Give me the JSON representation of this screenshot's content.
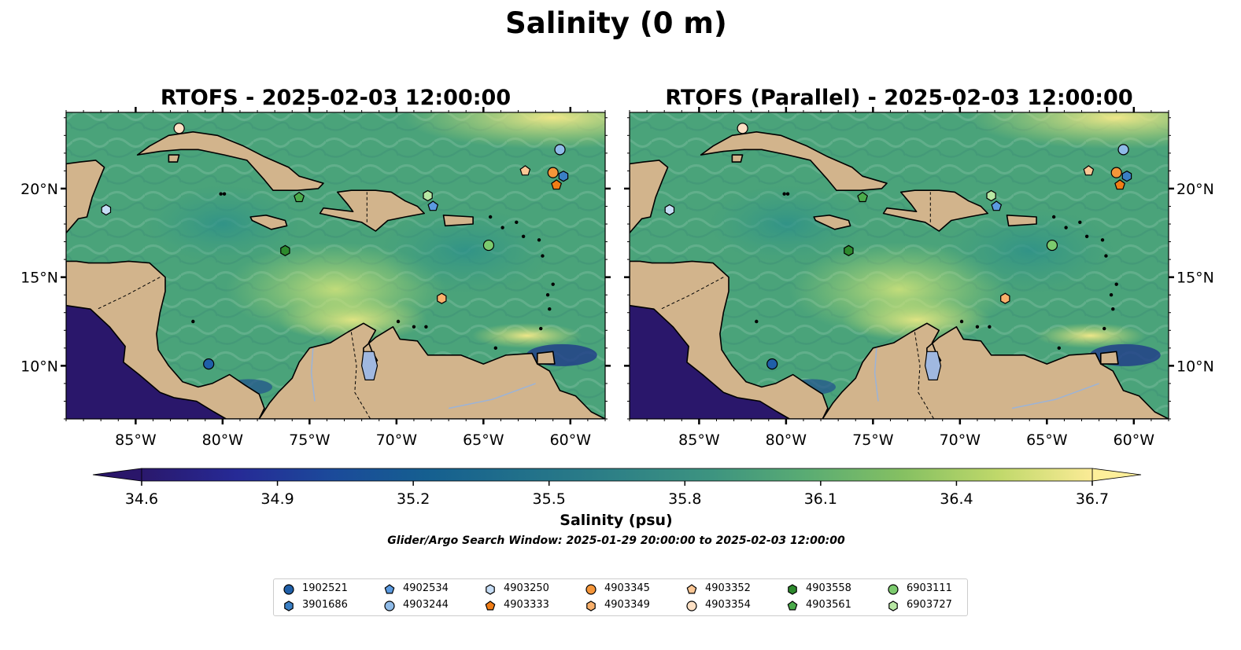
{
  "figure": {
    "suptitle": "Salinity (0 m)",
    "colorbar_label": "Salinity (psu)",
    "search_window": "Glider/Argo Search Window: 2025-01-29 20:00:00 to 2025-02-03 12:00:00"
  },
  "panels": [
    {
      "title": "RTOFS - 2025-02-03 12:00:00"
    },
    {
      "title": "RTOFS (Parallel) - 2025-02-03 12:00:00"
    }
  ],
  "axes": {
    "lon_range": [
      -89,
      -58
    ],
    "lat_range": [
      7,
      24.3
    ],
    "lon_ticks": [
      -85,
      -80,
      -75,
      -70,
      -65,
      -60
    ],
    "lon_tick_labels": [
      "85°W",
      "80°W",
      "75°W",
      "70°W",
      "65°W",
      "60°W"
    ],
    "lat_ticks": [
      10,
      15,
      20
    ],
    "lat_tick_labels": [
      "10°N",
      "15°N",
      "20°N"
    ]
  },
  "colorbar": {
    "min": 34.6,
    "max": 36.7,
    "ticks": [
      34.6,
      34.9,
      35.2,
      35.5,
      35.8,
      36.1,
      36.4,
      36.7
    ],
    "tick_labels": [
      "34.6",
      "34.9",
      "35.2",
      "35.5",
      "35.8",
      "36.1",
      "36.4",
      "36.7"
    ],
    "extend": "both",
    "colormap": "haline"
  },
  "colors": {
    "land": "#d2b48c",
    "lake": "#a0b8e0",
    "deep_low": "#2a176b",
    "high": "#fdef9a"
  },
  "floats": [
    {
      "id": "1902521",
      "marker": "circle",
      "color": "#1f5fa8",
      "lon": -80.8,
      "lat": 10.1
    },
    {
      "id": "3901686",
      "marker": "hexagon",
      "color": "#3a7fc4",
      "lon": -60.4,
      "lat": 20.7
    },
    {
      "id": "4902534",
      "marker": "pentagon",
      "color": "#5b9ae0",
      "lon": -67.9,
      "lat": 19.0
    },
    {
      "id": "4903244",
      "marker": "circle",
      "color": "#8fbbe8",
      "lon": -60.6,
      "lat": 22.2
    },
    {
      "id": "4903250",
      "marker": "hexagon",
      "color": "#c6ddf5",
      "lon": -86.7,
      "lat": 18.8
    },
    {
      "id": "4903333",
      "marker": "pentagon",
      "color": "#f07d16",
      "lon": -60.8,
      "lat": 20.2
    },
    {
      "id": "4903345",
      "marker": "circle",
      "color": "#f5963a",
      "lon": -61.0,
      "lat": 20.9
    },
    {
      "id": "4903349",
      "marker": "hexagon",
      "color": "#f9b06b",
      "lon": -67.4,
      "lat": 13.8
    },
    {
      "id": "4903352",
      "marker": "pentagon",
      "color": "#fcc795",
      "lon": -62.6,
      "lat": 21.0
    },
    {
      "id": "4903354",
      "marker": "circle",
      "color": "#fde0c4",
      "lon": -82.5,
      "lat": 23.4
    },
    {
      "id": "4903558",
      "marker": "hexagon",
      "color": "#2d8a2d",
      "lon": -76.4,
      "lat": 16.5
    },
    {
      "id": "4903561",
      "marker": "pentagon",
      "color": "#4bab4b",
      "lon": -75.6,
      "lat": 19.5
    },
    {
      "id": "6903111",
      "marker": "circle",
      "color": "#7ccb6e",
      "lon": -64.7,
      "lat": 16.8
    },
    {
      "id": "6903727",
      "marker": "hexagon",
      "color": "#b8e8a4",
      "lon": -68.2,
      "lat": 19.6
    }
  ]
}
